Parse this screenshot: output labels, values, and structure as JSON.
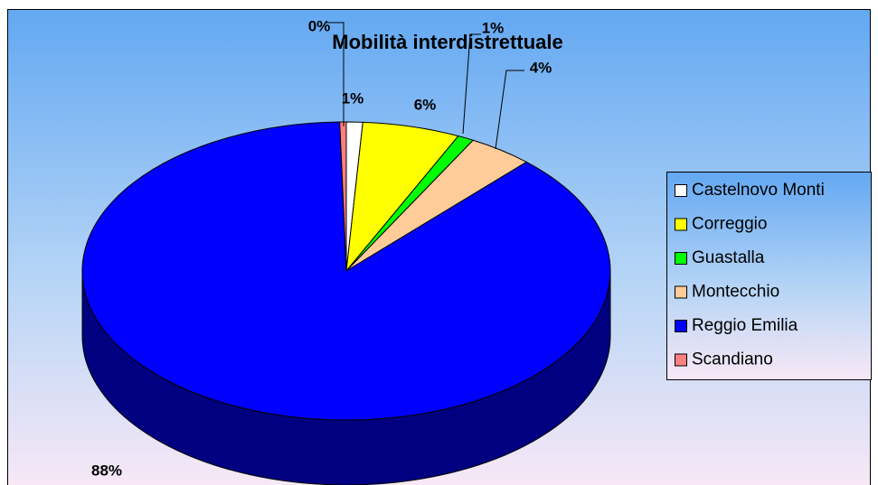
{
  "chart_data": {
    "type": "pie",
    "title": "Mobilità interdistrettuale",
    "categories": [
      "Castelnovo Monti",
      "Correggio",
      "Guastalla",
      "Montecchio",
      "Reggio Emilia",
      "Scandiano"
    ],
    "values": [
      1,
      6,
      1,
      4,
      88,
      0.4
    ],
    "value_labels": [
      "1%",
      "6%",
      "1%",
      "4%",
      "88%",
      "0%"
    ],
    "colors": [
      "#ffffff",
      "#ffff00",
      "#00ff00",
      "#ffcc99",
      "#0000ff",
      "#ff8080"
    ],
    "legend": "right"
  }
}
